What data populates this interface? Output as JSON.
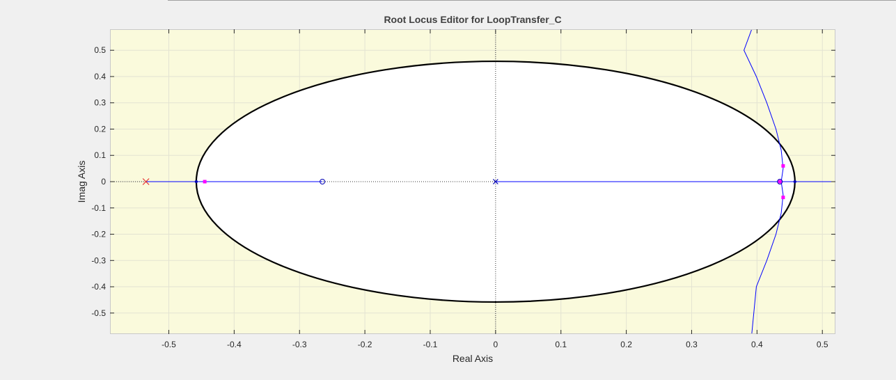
{
  "chart_data": {
    "type": "scatter",
    "title": "Root Locus Editor for LoopTransfer_C",
    "xlabel": "Real Axis",
    "ylabel": "Imag Axis",
    "xlim": [
      -0.59,
      0.52
    ],
    "ylim": [
      -0.58,
      0.58
    ],
    "xticks": [
      -0.5,
      -0.4,
      -0.3,
      -0.2,
      -0.1,
      0,
      0.1,
      0.2,
      0.3,
      0.4,
      0.5
    ],
    "xtick_labels": [
      "-0.5",
      "-0.4",
      "-0.3",
      "-0.2",
      "-0.1",
      "0",
      "0.1",
      "0.2",
      "0.3",
      "0.4",
      "0.5"
    ],
    "yticks": [
      0.5,
      0.4,
      0.3,
      0.2,
      0.1,
      0,
      -0.1,
      -0.2,
      -0.3,
      -0.4,
      -0.5
    ],
    "ytick_labels": [
      "0.5",
      "0.4",
      "0.3",
      "0.2",
      "0.1",
      "0",
      "-0.1",
      "-0.2",
      "-0.3",
      "-0.4",
      "-0.5"
    ],
    "grid": true,
    "background_color": "#fafadc",
    "stable_region": {
      "shape": "ellipse",
      "center": [
        0,
        0
      ],
      "semi_axis_real": 0.458,
      "semi_axis_imag": 0.458,
      "color": "#000000"
    },
    "colors": {
      "locus": "#0000ff",
      "open_loop": "#0000b4",
      "compensator": "#e63232",
      "closed_loop": "#ff00ff"
    },
    "compensator_poles": [
      {
        "re": -0.535,
        "im": 0
      }
    ],
    "open_loop_poles": [
      {
        "re": 0,
        "im": 0
      }
    ],
    "open_loop_zeros": [
      {
        "re": -0.265,
        "im": 0
      }
    ],
    "closed_loop_poles": [
      {
        "re": -0.445,
        "im": 0
      },
      {
        "re": 0.435,
        "im": 0
      },
      {
        "re": 0.44,
        "im": 0.06
      },
      {
        "re": 0.44,
        "im": -0.06
      }
    ],
    "locus_segments": [
      {
        "name": "real-axis-left",
        "points": [
          [
            -0.535,
            0
          ],
          [
            -0.265,
            0
          ]
        ]
      },
      {
        "name": "real-axis-right",
        "points": [
          [
            0,
            0
          ],
          [
            0.52,
            0
          ]
        ]
      },
      {
        "name": "upper-branch",
        "points": [
          [
            0.437,
            0
          ],
          [
            0.44,
            0.05
          ],
          [
            0.437,
            0.12
          ],
          [
            0.429,
            0.2
          ],
          [
            0.415,
            0.3
          ],
          [
            0.399,
            0.4
          ],
          [
            0.38,
            0.5
          ],
          [
            0.392,
            0.58
          ]
        ]
      },
      {
        "name": "lower-branch",
        "points": [
          [
            0.437,
            0
          ],
          [
            0.44,
            -0.05
          ],
          [
            0.437,
            -0.12
          ],
          [
            0.429,
            -0.2
          ],
          [
            0.415,
            -0.3
          ],
          [
            0.399,
            -0.4
          ],
          [
            0.392,
            -0.58
          ]
        ]
      }
    ]
  }
}
